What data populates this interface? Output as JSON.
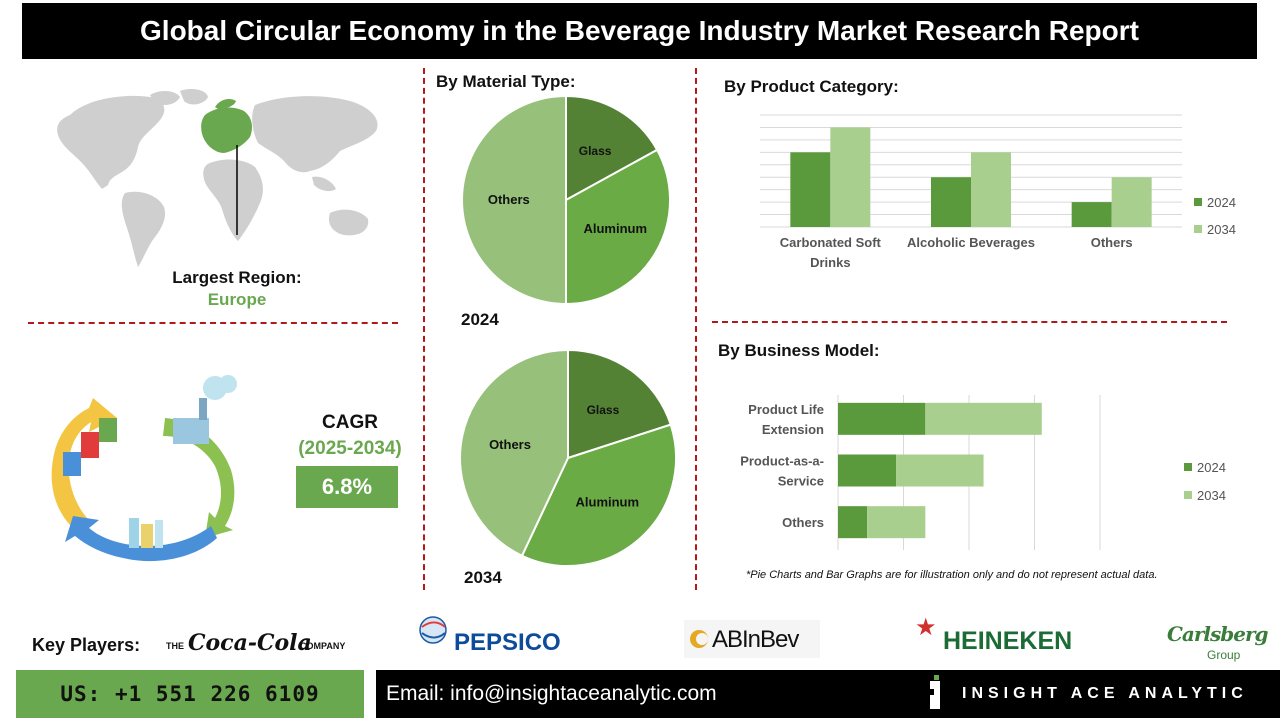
{
  "header": {
    "title": "Global Circular Economy in the Beverage Industry Market Research Report"
  },
  "region": {
    "label": "Largest Region:",
    "value": "Europe"
  },
  "cagr": {
    "label": "CAGR",
    "years": "(2025-2034)",
    "value": "6.8%"
  },
  "sections": {
    "material": "By Material Type:",
    "product": "By Product Category:",
    "business": "By Business Model:"
  },
  "note": "*Pie Charts and Bar Graphs are for illustration only and do not represent actual data.",
  "key_players": {
    "label": "Key Players:",
    "logos": [
      "THE",
      "Coca-Cola",
      "COMPANY",
      "PEPSICO",
      "ABInBev",
      "HEINEKEN",
      "Carlsberg",
      "Group"
    ]
  },
  "footer": {
    "phone": "US: +1 551 226 6109",
    "email": "Email: info@insightaceanalytic.com",
    "brand": "INSIGHT ACE ANALYTIC"
  },
  "colors": {
    "dark_green": "#5b9a3c",
    "light_green": "#a9cf8f",
    "pie_dark": "#548235",
    "pie_mid": "#6aab45",
    "pie_light": "#97c07a",
    "accent": "#6aa84f",
    "divider": "#b11a1a"
  },
  "chart_data": [
    {
      "type": "pie",
      "year_label": "2024",
      "slices": [
        {
          "label": "Glass",
          "value": 17
        },
        {
          "label": "Aluminum",
          "value": 33
        },
        {
          "label": "Others",
          "value": 50
        }
      ]
    },
    {
      "type": "pie",
      "year_label": "2034",
      "slices": [
        {
          "label": "Glass",
          "value": 20
        },
        {
          "label": "Aluminum",
          "value": 37
        },
        {
          "label": "Others",
          "value": 43
        }
      ]
    },
    {
      "type": "bar",
      "categories": [
        "Carbonated Soft Drinks",
        "Alcoholic Beverages",
        "Others"
      ],
      "series": [
        {
          "name": "2024",
          "values": [
            3,
            2,
            1
          ]
        },
        {
          "name": "2034",
          "values": [
            4,
            3,
            2
          ]
        }
      ],
      "ylim": [
        0,
        4.5
      ],
      "grid": true,
      "legend": "right"
    },
    {
      "type": "bar",
      "orientation": "horizontal",
      "categories": [
        "Product Life Extension",
        "Product-as-a-Service",
        "Others"
      ],
      "series": [
        {
          "name": "2024",
          "values": [
            3,
            2,
            1
          ]
        },
        {
          "name": "2034",
          "values": [
            4,
            3,
            2
          ]
        }
      ],
      "stacked": true,
      "xlim": [
        0,
        9
      ],
      "grid": true,
      "legend": "right"
    }
  ]
}
